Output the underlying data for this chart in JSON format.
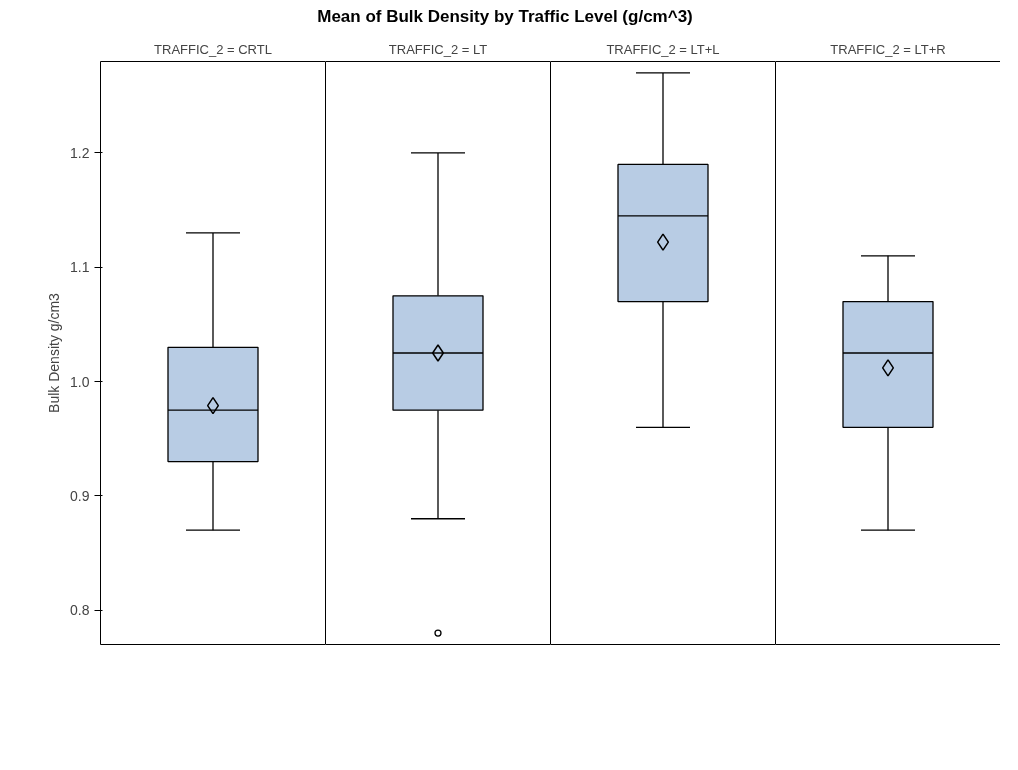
{
  "chart_data": {
    "type": "box",
    "title": "Mean of Bulk Density by Traffic Level (g/cm^3)",
    "ylabel": "Bulk Density g/cm3",
    "categories": [
      "TRAFFIC_2 = CRTL",
      "TRAFFIC_2 = LT",
      "TRAFFIC_2 = LT+L",
      "TRAFFIC_2 = LT+R"
    ],
    "color": "#b8cce4",
    "boxes": [
      {
        "low": 0.87,
        "q1": 0.93,
        "median": 0.975,
        "q3": 1.03,
        "high": 1.13,
        "mean": 0.979
      },
      {
        "low": 0.88,
        "q1": 0.975,
        "median": 1.025,
        "q3": 1.075,
        "high": 1.2,
        "mean": 1.025,
        "outliers": [
          0.78
        ]
      },
      {
        "low": 0.96,
        "q1": 1.07,
        "median": 1.145,
        "q3": 1.19,
        "high": 1.27,
        "mean": 1.122
      },
      {
        "low": 0.87,
        "q1": 0.96,
        "median": 1.025,
        "q3": 1.07,
        "high": 1.11,
        "mean": 1.012
      }
    ],
    "ylim": [
      0.77,
      1.28
    ],
    "yticks": [
      0.8,
      0.9,
      {
        "value": 1,
        "label": "1.0"
      },
      1.1,
      1.2
    ]
  }
}
